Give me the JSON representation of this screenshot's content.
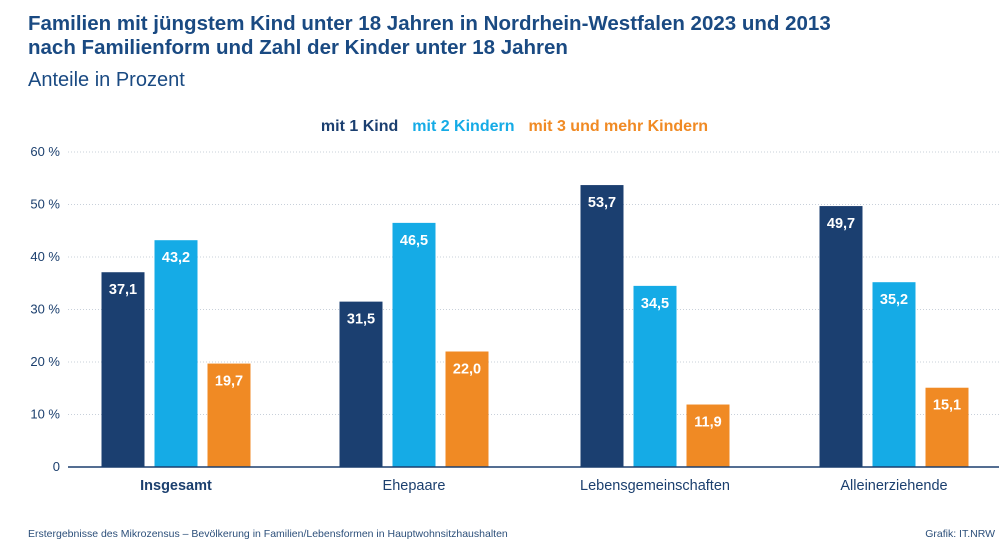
{
  "header": {
    "title_line1": "Familien mit jüngstem Kind unter 18 Jahren in Nordrhein-Westfalen 2023 und 2013",
    "title_line2": "nach Familienform und Zahl der Kinder unter 18 Jahren",
    "subtitle": "Anteile in Prozent"
  },
  "footer": {
    "source": "Erstergebnisse des Mikrozensus – Bevölkerung in Familien/Lebensformen in Hauptwohnsitzhaushalten",
    "credit": "Grafik: IT.NRW"
  },
  "colors": {
    "series1": "#1b3f70",
    "series2": "#15abe6",
    "series3": "#f08a24",
    "grid": "#c8d0da",
    "baseline": "#1b3f6e"
  },
  "chart_data": {
    "type": "bar",
    "categories": [
      "Insgesamt",
      "Ehepaare",
      "Lebensgemeinschaften",
      "Alleinerziehende"
    ],
    "series": [
      {
        "name": "mit 1 Kind",
        "values": [
          37.1,
          31.5,
          53.7,
          49.7
        ]
      },
      {
        "name": "mit 2 Kindern",
        "values": [
          43.2,
          46.5,
          34.5,
          35.2
        ]
      },
      {
        "name": "mit 3 und mehr Kindern",
        "values": [
          19.7,
          22.0,
          11.9,
          15.1
        ]
      }
    ],
    "value_labels": [
      [
        "37,1",
        "31,5",
        "53,7",
        "49,7"
      ],
      [
        "43,2",
        "46,5",
        "34,5",
        "35,2"
      ],
      [
        "19,7",
        "22,0",
        "11,9",
        "15,1"
      ]
    ],
    "yticks": [
      0,
      10,
      20,
      30,
      40,
      50,
      60
    ],
    "ytick_labels": [
      "0",
      "10 %",
      "20 %",
      "30 %",
      "40 %",
      "50 %",
      "60 %"
    ],
    "ylim": [
      0,
      60
    ],
    "grid": true,
    "legend_position": "top-center",
    "highlighted_category": "Insgesamt"
  }
}
